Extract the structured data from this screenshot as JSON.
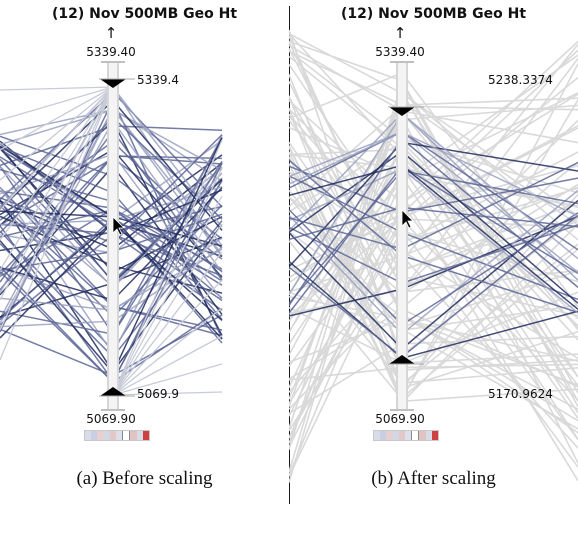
{
  "panel_a": {
    "title": "(12) Nov 500MB Geo Ht",
    "arrow": "↑",
    "axis_top": "5339.40",
    "axis_bottom": "5069.90",
    "marker_top": "5339.4",
    "marker_bottom": "5069.9",
    "caption": "(a)  Before scaling"
  },
  "panel_b": {
    "title": "(12) Nov 500MB Geo Ht",
    "arrow": "↑",
    "axis_top": "5339.40",
    "axis_bottom": "5069.90",
    "marker_top": "5238.3374",
    "marker_bottom": "5170.9624",
    "caption": "(b)  After scaling"
  },
  "colors": {
    "highlight_dark": "#1f2a5c",
    "highlight_mid": "#5c6595",
    "highlight_light": "#9aa0c0",
    "context_grey": "#d9d9d9",
    "axis": "#d6d6d6"
  }
}
